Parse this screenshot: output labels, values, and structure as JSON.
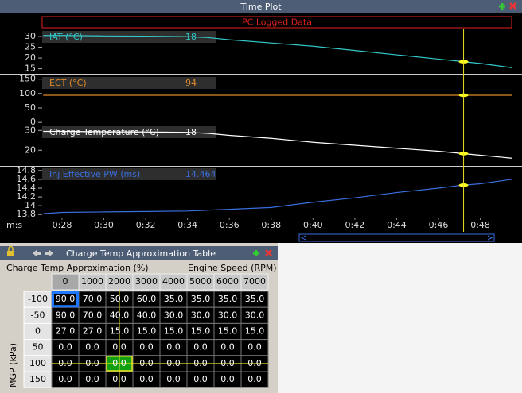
{
  "time_plot": {
    "title": "Time Plot",
    "source": "PC Logged Data",
    "x_axis_label": "m:s",
    "xlim": [
      27.05,
      49.5
    ],
    "xticks": [
      {
        "value": 28,
        "label": "0:28"
      },
      {
        "value": 30,
        "label": "0:30"
      },
      {
        "value": 32,
        "label": "0:32"
      },
      {
        "value": 34,
        "label": "0:34"
      },
      {
        "value": 36,
        "label": "0:36"
      },
      {
        "value": 38,
        "label": "0:38"
      },
      {
        "value": 40,
        "label": "0:40"
      },
      {
        "value": 42,
        "label": "0:42"
      },
      {
        "value": 44,
        "label": "0:44"
      },
      {
        "value": 46,
        "label": "0:46"
      },
      {
        "value": 48,
        "label": "0:48"
      }
    ],
    "cursor": 47.2,
    "panels": [
      {
        "name": "IAT (°C)",
        "readout": 18,
        "color": "#35c8c8",
        "ylim": [
          13,
          33
        ],
        "yticks": [
          30,
          25,
          20,
          15
        ],
        "x": [
          27.1,
          28,
          30,
          32,
          34,
          35,
          36,
          38,
          40,
          42,
          44,
          46,
          47,
          48,
          49.5
        ],
        "values": [
          30.5,
          30.5,
          30.3,
          30.2,
          30,
          29.5,
          28.5,
          27,
          25.5,
          23.5,
          21.5,
          19.5,
          18.5,
          17.5,
          15.5
        ]
      },
      {
        "name": "ECT (°C)",
        "readout": 94,
        "color": "#e08a28",
        "ylim": [
          -5,
          160
        ],
        "yticks": [
          150,
          100,
          50,
          0
        ],
        "x": [
          27.1,
          49.5
        ],
        "values": [
          94,
          94
        ]
      },
      {
        "name": "Charge Temperature (°C)",
        "readout": 18,
        "color": "#ffffff",
        "ylim": [
          12.5,
          32.5
        ],
        "yticks": [
          30,
          20
        ],
        "x": [
          27.1,
          28,
          30,
          32,
          34,
          35,
          36,
          38,
          40,
          42,
          44,
          46,
          47,
          48,
          49.5
        ],
        "values": [
          29.5,
          29.5,
          29.3,
          29.2,
          29,
          28.5,
          27.5,
          26,
          24,
          22.5,
          21,
          19.5,
          18.5,
          17.5,
          16
        ]
      },
      {
        "name": "Inj Effective PW (ms)",
        "readout": 14.464,
        "color": "#3a6fe0",
        "ylim": [
          13.75,
          14.87
        ],
        "yticks": [
          14.8,
          14.6,
          14.4,
          14.2,
          14,
          13.8
        ],
        "x": [
          27.1,
          28,
          30,
          32,
          34,
          35,
          36,
          38,
          40,
          42,
          44,
          46,
          47,
          48,
          49.5
        ],
        "values": [
          13.82,
          13.85,
          13.86,
          13.87,
          13.88,
          13.9,
          13.92,
          13.96,
          14.08,
          14.18,
          14.3,
          14.4,
          14.46,
          14.5,
          14.6
        ]
      }
    ]
  },
  "table": {
    "title": "Charge Temp Approximation Table",
    "caption": "Charge Temp Approximation (%)",
    "column_axis": "Engine Speed (RPM)",
    "row_axis": "MGP (kPa)",
    "columns": [
      "0",
      "1000",
      "2000",
      "3000",
      "4000",
      "5000",
      "6000",
      "7000"
    ],
    "row_labels": [
      "-100",
      "-50",
      "0",
      "50",
      "100",
      "150"
    ],
    "rows": [
      [
        "90.0",
        "70.0",
        "50.0",
        "60.0",
        "35.0",
        "35.0",
        "35.0",
        "35.0"
      ],
      [
        "90.0",
        "70.0",
        "40.0",
        "40.0",
        "30.0",
        "30.0",
        "30.0",
        "30.0"
      ],
      [
        "27.0",
        "27.0",
        "15.0",
        "15.0",
        "15.0",
        "15.0",
        "15.0",
        "15.0"
      ],
      [
        "0.0",
        "0.0",
        "0.0",
        "0.0",
        "0.0",
        "0.0",
        "0.0",
        "0.0"
      ],
      [
        "0.0",
        "0.0",
        "0.0",
        "0.0",
        "0.0",
        "0.0",
        "0.0",
        "0.0"
      ],
      [
        "0.0",
        "0.0",
        "0.0",
        "0.0",
        "0.0",
        "0.0",
        "0.0",
        "0.0"
      ]
    ],
    "selected_cell": [
      0,
      0
    ],
    "active_cell": [
      4,
      2
    ]
  }
}
